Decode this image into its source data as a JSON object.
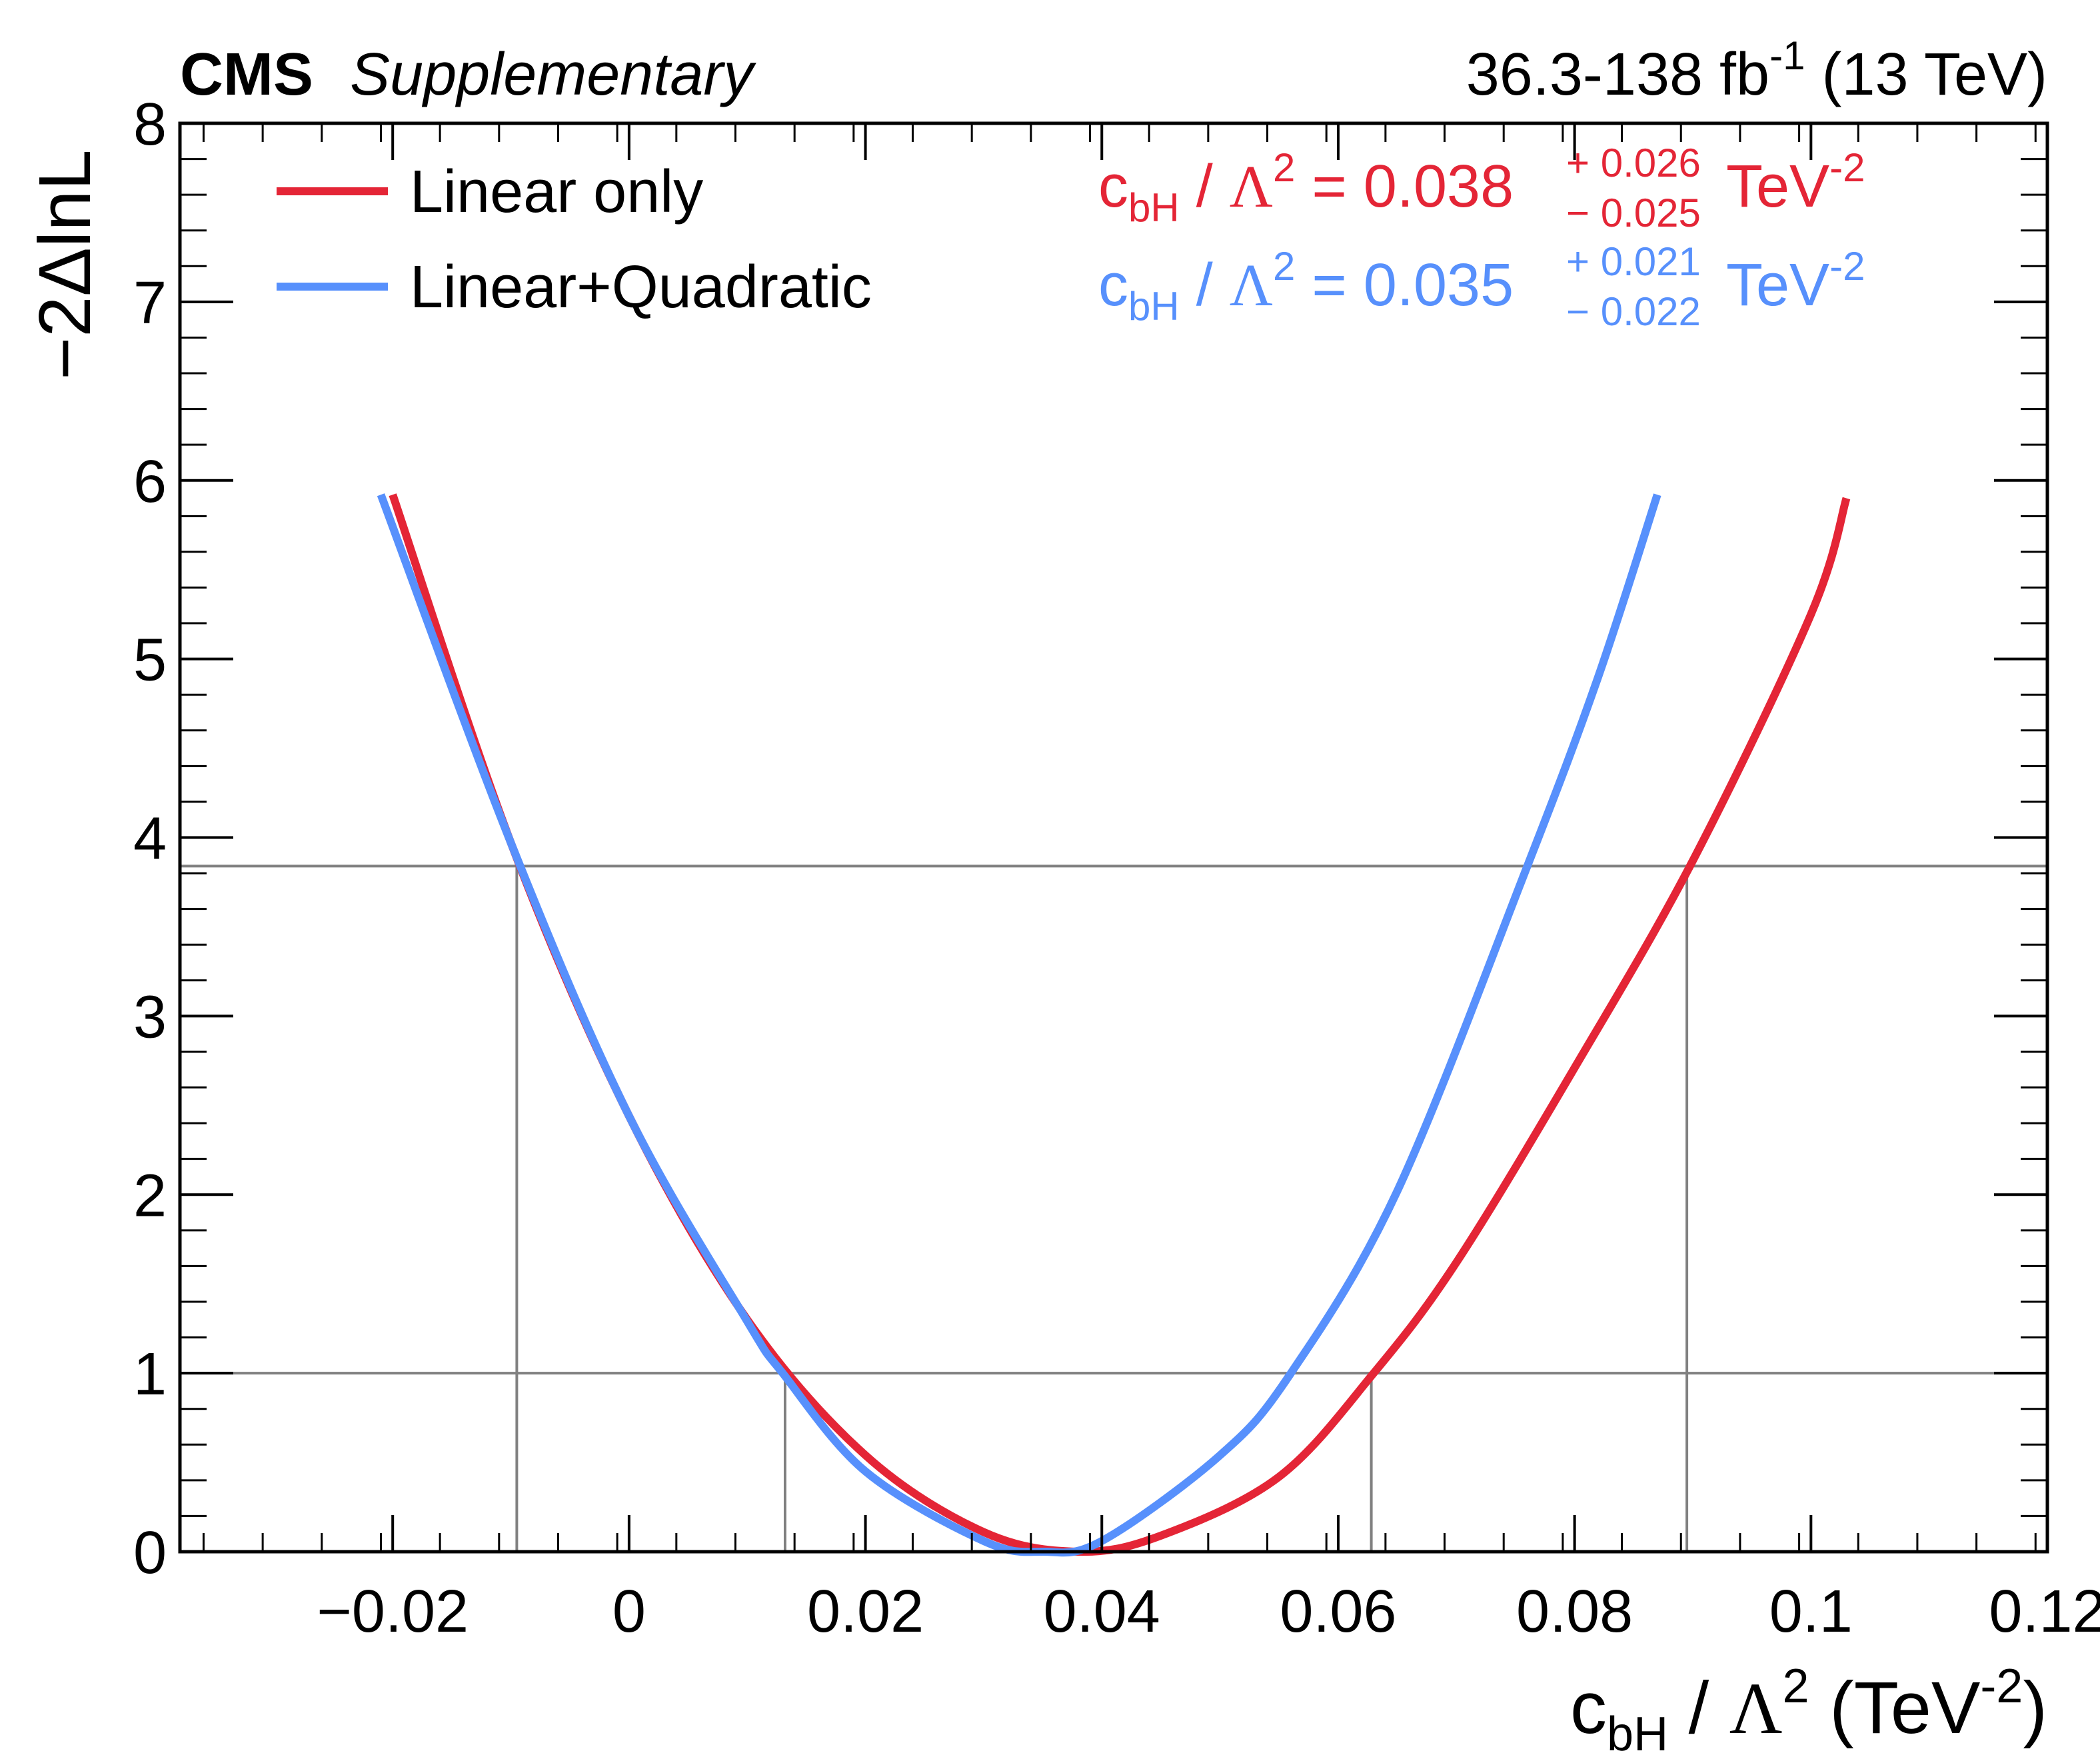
{
  "header": {
    "experiment": "CMS",
    "label": "Supplementary",
    "lumi_value": "36.3-138 fb",
    "lumi_exp": "-1",
    "energy": " (13 TeV)"
  },
  "legend": [
    {
      "label": "Linear only",
      "color": "#e42536"
    },
    {
      "label": "Linear+Quadratic",
      "color": "#5790fc"
    }
  ],
  "results": [
    {
      "coef": "c",
      "coef_sub": "bH",
      "slash": " / ",
      "lambda": "Λ",
      "lambda_exp": "2",
      "eq": " = 0.038",
      "up": "+ 0.026",
      "down": "− 0.025",
      "unit": " TeV",
      "unit_exp": "-2",
      "color": "#e42536"
    },
    {
      "coef": "c",
      "coef_sub": "bH",
      "slash": " / ",
      "lambda": "Λ",
      "lambda_exp": "2",
      "eq": " = 0.035",
      "up": "+ 0.021",
      "down": "− 0.022",
      "unit": " TeV",
      "unit_exp": "-2",
      "color": "#5790fc"
    }
  ],
  "axes": {
    "y_label": "−2ΔlnL",
    "x_label": {
      "c": "c",
      "sub": "bH",
      "slash": " / ",
      "lambda": "Λ",
      "lambda_exp": "2",
      "open": " (TeV",
      "exp": "-2",
      "close": ")"
    },
    "x_ticks": [
      "−0.02",
      "0",
      "0.02",
      "0.04",
      "0.06",
      "0.08",
      "0.1",
      "0.12"
    ],
    "y_ticks": [
      "0",
      "1",
      "2",
      "3",
      "4",
      "5",
      "6",
      "7",
      "8"
    ]
  },
  "chart_data": {
    "type": "line",
    "title": "",
    "xlabel": "c_bH / Λ^2 (TeV^-2)",
    "ylabel": "−2ΔlnL",
    "xlim": [
      -0.038,
      0.12
    ],
    "ylim": [
      0,
      8
    ],
    "x_tick_values": [
      -0.02,
      0,
      0.02,
      0.04,
      0.06,
      0.08,
      0.1,
      0.12
    ],
    "y_tick_values": [
      0,
      1,
      2,
      3,
      4,
      5,
      6,
      7,
      8
    ],
    "reference_lines": [
      1.0,
      3.84
    ],
    "interval_marks": [
      {
        "x": -0.0095,
        "y": 3.84
      },
      {
        "x": 0.0132,
        "y": 1.0
      },
      {
        "x": 0.0628,
        "y": 1.0
      },
      {
        "x": 0.0895,
        "y": 3.84
      }
    ],
    "series": [
      {
        "name": "Linear only",
        "color": "#e42536",
        "x": [
          -0.02,
          -0.01,
          0.0,
          0.01,
          0.02,
          0.03,
          0.038,
          0.045,
          0.055,
          0.063,
          0.07,
          0.08,
          0.09,
          0.1,
          0.103
        ],
        "y": [
          5.92,
          3.97,
          2.44,
          1.3,
          0.54,
          0.11,
          0.0,
          0.09,
          0.42,
          1.0,
          1.62,
          2.71,
          3.87,
          5.25,
          5.9
        ]
      },
      {
        "name": "Linear+Quadratic",
        "color": "#5790fc",
        "x": [
          -0.021,
          -0.01,
          0.0,
          0.01,
          0.013,
          0.02,
          0.03,
          0.035,
          0.04,
          0.05,
          0.056,
          0.065,
          0.076,
          0.082,
          0.087
        ],
        "y": [
          5.92,
          3.97,
          2.44,
          1.29,
          1.0,
          0.45,
          0.06,
          0.0,
          0.06,
          0.54,
          1.0,
          2.02,
          3.84,
          4.9,
          5.92
        ]
      }
    ]
  }
}
